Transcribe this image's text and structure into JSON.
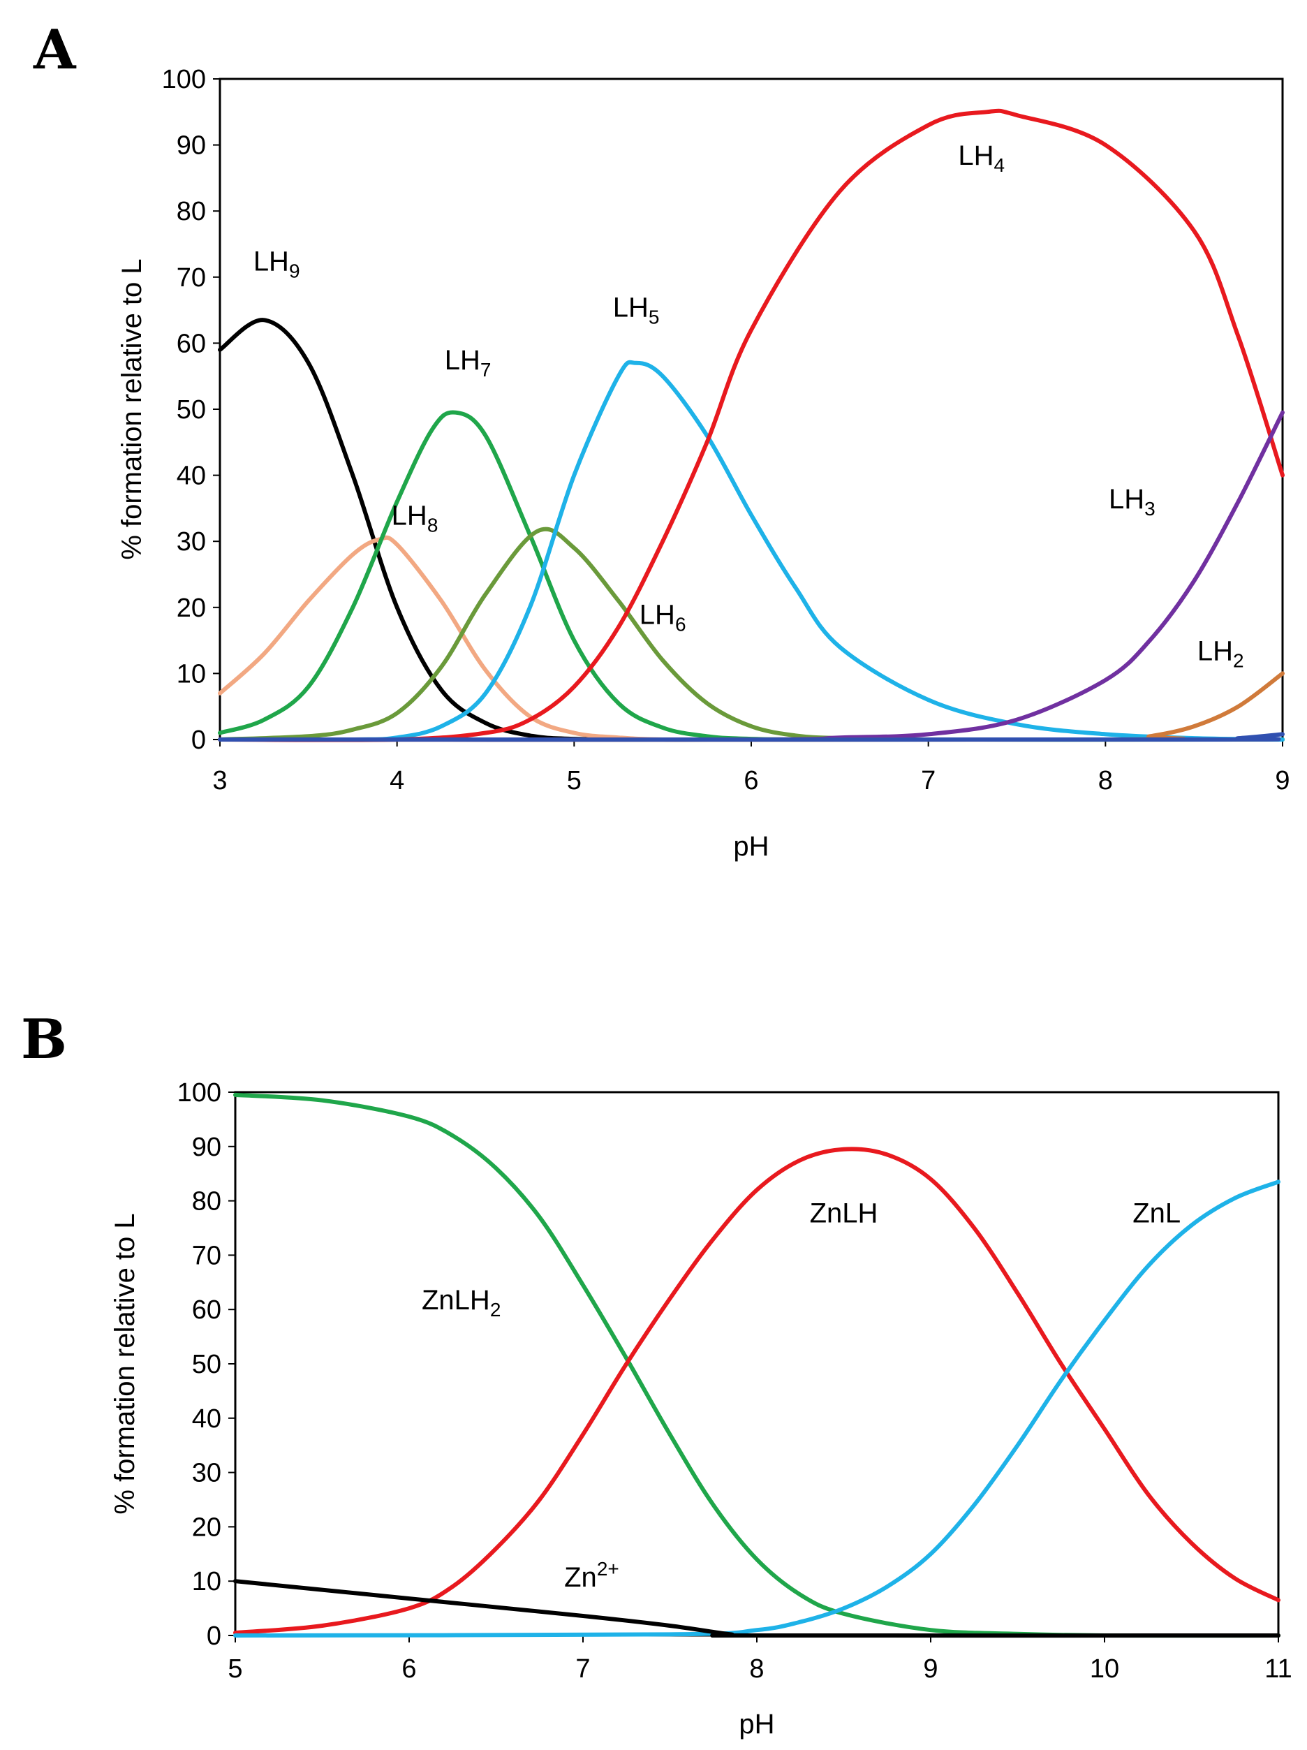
{
  "chart_data": [
    {
      "panel": "A",
      "type": "line",
      "xlabel": "pH",
      "ylabel": "% formation relative to L",
      "xlim": [
        3,
        9
      ],
      "ylim": [
        0,
        100
      ],
      "xticks": [
        3,
        4,
        5,
        6,
        7,
        8,
        9
      ],
      "yticks": [
        0,
        10,
        20,
        30,
        40,
        50,
        60,
        70,
        80,
        90,
        100
      ],
      "series": [
        {
          "name": "LH9",
          "base": "LH",
          "sub": "9",
          "color": "#000000",
          "x": [
            3.0,
            3.25,
            3.5,
            3.75,
            4.0,
            4.25,
            4.5,
            4.75,
            5.0,
            5.5,
            6.0,
            9.0
          ],
          "y": [
            59,
            63.5,
            57,
            40,
            20,
            7.5,
            2.5,
            0.6,
            0.1,
            0,
            0,
            0
          ]
        },
        {
          "name": "LH8",
          "base": "LH",
          "sub": "8",
          "color": "#F2A882",
          "x": [
            3.0,
            3.25,
            3.5,
            3.75,
            3.9,
            4.0,
            4.25,
            4.5,
            4.75,
            5.0,
            5.25,
            5.5,
            6.0,
            9.0
          ],
          "y": [
            7,
            13,
            21,
            28,
            30.3,
            29.5,
            21,
            10.5,
            3.5,
            1,
            0.3,
            0,
            0,
            0
          ]
        },
        {
          "name": "LH7",
          "base": "LH",
          "sub": "7",
          "color": "#1FA64A",
          "x": [
            3.0,
            3.25,
            3.5,
            3.75,
            4.0,
            4.2,
            4.33,
            4.5,
            4.75,
            5.0,
            5.25,
            5.5,
            5.75,
            6.0,
            6.5,
            9.0
          ],
          "y": [
            1,
            3,
            8,
            20,
            36,
            47,
            49.5,
            46,
            31,
            15,
            5.5,
            1.8,
            0.5,
            0.1,
            0,
            0
          ]
        },
        {
          "name": "LH6",
          "base": "LH",
          "sub": "6",
          "color": "#6A9A3A",
          "x": [
            3.0,
            3.5,
            3.75,
            4.0,
            4.25,
            4.5,
            4.79,
            5.0,
            5.25,
            5.5,
            5.75,
            6.0,
            6.25,
            6.5,
            7.0,
            9.0
          ],
          "y": [
            0,
            0.5,
            1.5,
            4,
            11,
            22,
            31.5,
            29,
            21,
            12,
            5.5,
            2,
            0.6,
            0.2,
            0,
            0
          ]
        },
        {
          "name": "LH5",
          "base": "LH",
          "sub": "5",
          "color": "#1EB2E8",
          "x": [
            3.0,
            3.75,
            4.0,
            4.25,
            4.5,
            4.75,
            5.0,
            5.25,
            5.35,
            5.5,
            5.75,
            6.0,
            6.25,
            6.5,
            7.0,
            7.5,
            8.0,
            8.5,
            9.0
          ],
          "y": [
            0,
            0,
            0.3,
            2,
            7,
            20,
            40,
            55,
            57,
            55,
            46,
            34,
            23,
            14,
            6,
            2.3,
            0.8,
            0.2,
            0
          ]
        },
        {
          "name": "LH4",
          "base": "LH",
          "sub": "4",
          "color": "#E8191E",
          "x": [
            3.0,
            4.0,
            4.5,
            4.75,
            5.0,
            5.25,
            5.5,
            5.75,
            6.0,
            6.5,
            7.0,
            7.33,
            7.5,
            8.0,
            8.5,
            8.75,
            9.0
          ],
          "y": [
            0,
            0,
            1,
            3,
            8,
            17,
            30,
            45,
            62,
            83,
            93,
            95,
            94.5,
            90,
            77,
            61,
            40
          ]
        },
        {
          "name": "LH3",
          "base": "LH",
          "sub": "3",
          "color": "#7030A0",
          "x": [
            3.0,
            6.0,
            6.5,
            7.0,
            7.5,
            8.0,
            8.25,
            8.5,
            8.75,
            9.0
          ],
          "y": [
            0,
            0,
            0.3,
            0.8,
            3,
            9,
            15,
            24,
            36,
            49.5
          ]
        },
        {
          "name": "LH2",
          "base": "LH",
          "sub": "2",
          "color": "#D07A3A",
          "x": [
            3.0,
            8.0,
            8.25,
            8.5,
            8.75,
            9.0
          ],
          "y": [
            0,
            0,
            0.5,
            2,
            5,
            10
          ]
        },
        {
          "name": "LH",
          "base": "",
          "sub": "",
          "color": "#3050B0",
          "x": [
            3.0,
            8.5,
            8.75,
            9.0
          ],
          "y": [
            0,
            0,
            0.2,
            0.8
          ]
        }
      ],
      "annotations": [
        {
          "base": "LH",
          "sub": "9",
          "x": 3.32,
          "y": 71
        },
        {
          "base": "LH",
          "sub": "8",
          "x": 4.1,
          "y": 32.5
        },
        {
          "base": "LH",
          "sub": "7",
          "x": 4.4,
          "y": 56
        },
        {
          "base": "LH",
          "sub": "6",
          "x": 5.5,
          "y": 17.5
        },
        {
          "base": "LH",
          "sub": "5",
          "x": 5.35,
          "y": 64
        },
        {
          "base": "LH",
          "sub": "4",
          "x": 7.3,
          "y": 87
        },
        {
          "base": "LH",
          "sub": "3",
          "x": 8.15,
          "y": 35
        },
        {
          "base": "LH",
          "sub": "2",
          "x": 8.65,
          "y": 12
        }
      ]
    },
    {
      "panel": "B",
      "type": "line",
      "xlabel": "pH",
      "ylabel": "% formation relative to L",
      "xlim": [
        5,
        11
      ],
      "ylim": [
        0,
        100
      ],
      "xticks": [
        5,
        6,
        7,
        8,
        9,
        10,
        11
      ],
      "yticks": [
        0,
        10,
        20,
        30,
        40,
        50,
        60,
        70,
        80,
        90,
        100
      ],
      "series": [
        {
          "name": "ZnLH2",
          "base": "ZnLH",
          "sub": "2",
          "color": "#1FA64A",
          "x": [
            5.0,
            5.5,
            6.0,
            6.25,
            6.5,
            6.75,
            7.0,
            7.25,
            7.5,
            7.75,
            8.0,
            8.25,
            8.5,
            9.0,
            9.5,
            10.0,
            11.0
          ],
          "y": [
            99.5,
            98.5,
            95.5,
            92,
            86,
            77,
            64.5,
            51,
            37,
            24,
            14,
            7.5,
            4,
            1,
            0.3,
            0,
            0
          ]
        },
        {
          "name": "ZnLH",
          "base": "ZnLH",
          "sub": "",
          "color": "#E8191E",
          "x": [
            5.0,
            5.5,
            6.0,
            6.25,
            6.5,
            6.75,
            7.0,
            7.25,
            7.5,
            7.75,
            8.0,
            8.25,
            8.5,
            8.75,
            9.0,
            9.25,
            9.5,
            9.75,
            10.0,
            10.25,
            10.5,
            10.75,
            11.0
          ],
          "y": [
            0.5,
            1.8,
            5,
            9,
            16,
            25,
            37,
            50,
            62,
            73,
            82,
            87.5,
            89.5,
            88.5,
            84,
            75,
            63,
            50,
            38,
            26,
            17,
            10.5,
            6.5
          ]
        },
        {
          "name": "ZnL",
          "base": "ZnL",
          "sub": "",
          "color": "#1EB2E8",
          "x": [
            5.0,
            7.5,
            8.0,
            8.25,
            8.5,
            8.75,
            9.0,
            9.25,
            9.5,
            9.75,
            10.0,
            10.25,
            10.5,
            10.75,
            11.0
          ],
          "y": [
            0,
            0.2,
            1,
            2.5,
            5,
            9,
            15,
            24,
            35,
            47,
            58,
            68,
            75.5,
            80.5,
            83.5
          ]
        },
        {
          "name": "Zn2+",
          "base": "Zn",
          "sup": "2+",
          "color": "#000000",
          "x": [
            5.0,
            6.0,
            7.0,
            7.5,
            7.85,
            8.0,
            11.0
          ],
          "y": [
            10,
            6.8,
            3.6,
            1.8,
            0.2,
            0,
            0
          ]
        }
      ],
      "annotations": [
        {
          "base": "ZnLH",
          "sub": "2",
          "x": 6.3,
          "y": 60
        },
        {
          "base": "ZnLH",
          "sub": "",
          "x": 8.5,
          "y": 76
        },
        {
          "base": "ZnL",
          "sub": "",
          "x": 10.3,
          "y": 76
        },
        {
          "base": "Zn",
          "sup": "2+",
          "x": 7.05,
          "y": 9
        }
      ]
    }
  ],
  "panels": {
    "a": "A",
    "b": "B"
  }
}
